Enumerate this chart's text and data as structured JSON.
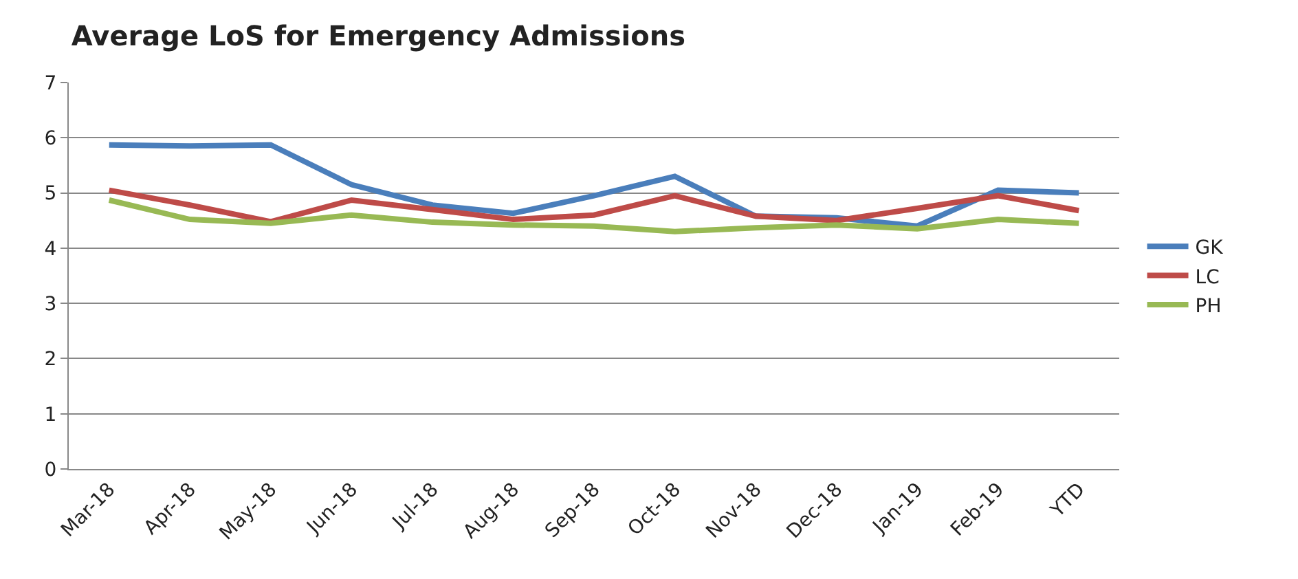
{
  "chart_data": {
    "type": "line",
    "title": "Average LoS for Emergency Admissions",
    "categories": [
      "Mar-18",
      "Apr-18",
      "May-18",
      "Jun-18",
      "Jul-18",
      "Aug-18",
      "Sep-18",
      "Oct-18",
      "Nov-18",
      "Dec-18",
      "Jan-19",
      "Feb-19",
      "YTD"
    ],
    "series": [
      {
        "name": "GK",
        "color": "#4a7ebb",
        "values": [
          5.87,
          5.85,
          5.87,
          5.15,
          4.78,
          4.63,
          4.95,
          5.3,
          4.58,
          4.55,
          4.4,
          5.05,
          5.0
        ]
      },
      {
        "name": "LC",
        "color": "#be4b48",
        "values": [
          5.05,
          4.78,
          4.48,
          4.87,
          4.7,
          4.52,
          4.6,
          4.95,
          4.58,
          4.5,
          4.72,
          4.95,
          4.68
        ]
      },
      {
        "name": "PH",
        "color": "#98b954",
        "values": [
          4.87,
          4.52,
          4.45,
          4.6,
          4.47,
          4.42,
          4.4,
          4.3,
          4.37,
          4.42,
          4.35,
          4.52,
          4.45
        ]
      }
    ],
    "ylim": [
      0,
      7
    ],
    "yticks": [
      0,
      1,
      2,
      3,
      4,
      5,
      6,
      7
    ],
    "grid": "y",
    "legend": "right",
    "marker": "none",
    "line_style": "solid"
  }
}
